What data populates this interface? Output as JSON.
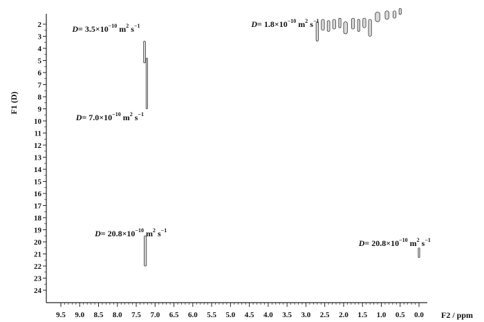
{
  "chart_data": {
    "type": "scatter",
    "title": "",
    "xlabel": "F2 / ppm",
    "ylabel": "F1 (D)",
    "xlim": [
      9.5,
      0.0
    ],
    "ylim": [
      1,
      24.5
    ],
    "x_reversed": true,
    "y_reversed": true,
    "x_ticks": [
      "9.5",
      "9.0",
      "8.5",
      "8.0",
      "7.5",
      "7.0",
      "6.5",
      "6.0",
      "5.5",
      "5.0",
      "4.5",
      "4.0",
      "3.5",
      "3.0",
      "2.5",
      "2.0",
      "1.5",
      "1.0",
      "0.5",
      "0.0"
    ],
    "y_ticks": [
      "2",
      "3",
      "4",
      "5",
      "6",
      "7",
      "8",
      "9",
      "10",
      "11",
      "12",
      "13",
      "14",
      "15",
      "16",
      "17",
      "18",
      "19",
      "20",
      "21",
      "22",
      "23",
      "24"
    ],
    "peaks": [
      {
        "x": 7.28,
        "y_start": 3.4,
        "y_end": 5.2,
        "width": 0.05
      },
      {
        "x": 7.22,
        "y_start": 4.8,
        "y_end": 9.0,
        "width": 0.04
      },
      {
        "x": 7.26,
        "y_start": 19.5,
        "y_end": 22.0,
        "width": 0.06
      },
      {
        "x": 0.0,
        "y_start": 20.5,
        "y_end": 21.3,
        "width": 0.04
      },
      {
        "x": 2.7,
        "y_start": 1.8,
        "y_end": 3.4,
        "width": 0.06
      },
      {
        "x": 2.55,
        "y_start": 1.6,
        "y_end": 2.5,
        "width": 0.08
      },
      {
        "x": 2.4,
        "y_start": 1.7,
        "y_end": 2.6,
        "width": 0.07
      },
      {
        "x": 2.25,
        "y_start": 1.6,
        "y_end": 2.4,
        "width": 0.08
      },
      {
        "x": 2.1,
        "y_start": 1.5,
        "y_end": 2.3,
        "width": 0.06
      },
      {
        "x": 1.95,
        "y_start": 1.8,
        "y_end": 2.8,
        "width": 0.1
      },
      {
        "x": 1.75,
        "y_start": 1.5,
        "y_end": 2.4,
        "width": 0.08
      },
      {
        "x": 1.6,
        "y_start": 1.6,
        "y_end": 2.6,
        "width": 0.06
      },
      {
        "x": 1.45,
        "y_start": 1.5,
        "y_end": 2.3,
        "width": 0.08
      },
      {
        "x": 1.3,
        "y_start": 1.6,
        "y_end": 3.0,
        "width": 0.08
      },
      {
        "x": 1.1,
        "y_start": 1.0,
        "y_end": 1.8,
        "width": 0.12
      },
      {
        "x": 0.85,
        "y_start": 0.9,
        "y_end": 1.6,
        "width": 0.1
      },
      {
        "x": 0.65,
        "y_start": 0.9,
        "y_end": 1.5,
        "width": 0.08
      },
      {
        "x": 0.5,
        "y_start": 0.7,
        "y_end": 1.2,
        "width": 0.06
      }
    ],
    "annotations": [
      {
        "label": "D",
        "text": "= 3.5×10",
        "exp": "−10",
        "unit": " m",
        "unit_exp": "2",
        "tail": " s",
        "tail_exp": "−1",
        "x": 9.2,
        "y": 2.4
      },
      {
        "label": "D",
        "text": "= 1.8×10",
        "exp": "−10",
        "unit": " m",
        "unit_exp": "2",
        "tail": " s",
        "tail_exp": "−1",
        "x": 4.45,
        "y": 2.0
      },
      {
        "label": "D",
        "text": "= 7.0×10",
        "exp": "−10",
        "unit": " m",
        "unit_exp": "2",
        "tail": " s",
        "tail_exp": "−1",
        "x": 9.1,
        "y": 9.7
      },
      {
        "label": "D",
        "text": "= 20.8×10",
        "exp": "−10",
        "unit": " m",
        "unit_exp": "2",
        "tail": " s",
        "tail_exp": "−1",
        "x": 8.6,
        "y": 19.3
      },
      {
        "label": "D",
        "text": "= 20.8×10",
        "exp": "−10",
        "unit": " m",
        "unit_exp": "2",
        "tail": " s",
        "tail_exp": "−1",
        "x": 1.6,
        "y": 20.1
      }
    ]
  }
}
